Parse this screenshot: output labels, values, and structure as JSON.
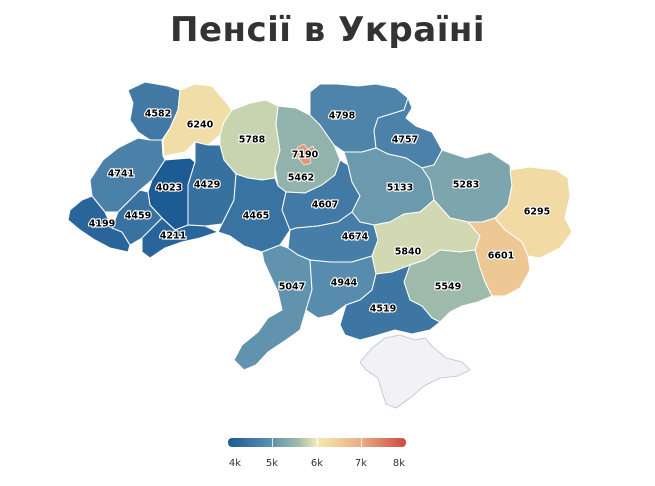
{
  "title": "Пенсії в Україні",
  "colors": {
    "scale": [
      "#1c5a94",
      "#5b8fb0",
      "#a3bea9",
      "#f2eab8",
      "#e8ac84",
      "#cd4a3e"
    ],
    "no_data": "#f2f2f5",
    "border": "#ffffff"
  },
  "regions": [
    {
      "name": "Volyn",
      "value": 4582
    },
    {
      "name": "Rivne",
      "value": 6240
    },
    {
      "name": "Zhytomyr",
      "value": 5788
    },
    {
      "name": "Kyiv oblast",
      "value": 5462
    },
    {
      "name": "Kyiv city",
      "value": 7190
    },
    {
      "name": "Chernihiv",
      "value": 4798
    },
    {
      "name": "Sumy",
      "value": 4757
    },
    {
      "name": "Lviv",
      "value": 4741
    },
    {
      "name": "Ternopil",
      "value": 4023
    },
    {
      "name": "Khmelnytskyi",
      "value": 4429
    },
    {
      "name": "Zakarpattia",
      "value": 4199
    },
    {
      "name": "Ivano-Frankivsk",
      "value": 4459
    },
    {
      "name": "Chernivtsi",
      "value": 4211
    },
    {
      "name": "Vinnytsia",
      "value": 4465
    },
    {
      "name": "Cherkasy",
      "value": 4607
    },
    {
      "name": "Poltava",
      "value": 5133
    },
    {
      "name": "Kharkiv",
      "value": 5283
    },
    {
      "name": "Luhansk",
      "value": 6295
    },
    {
      "name": "Kirovohrad",
      "value": 4674
    },
    {
      "name": "Dnipropetrovsk",
      "value": 5840
    },
    {
      "name": "Donetsk",
      "value": 6601
    },
    {
      "name": "Odesa",
      "value": 5047
    },
    {
      "name": "Mykolaiv",
      "value": 4944
    },
    {
      "name": "Zaporizhzhia",
      "value": 5549
    },
    {
      "name": "Kherson",
      "value": 4519
    },
    {
      "name": "Crimea",
      "value": null
    }
  ],
  "legend": {
    "min": 4000,
    "max": 8000,
    "ticks": [
      "4k",
      "5k",
      "6k",
      "7k",
      "8k"
    ]
  }
}
